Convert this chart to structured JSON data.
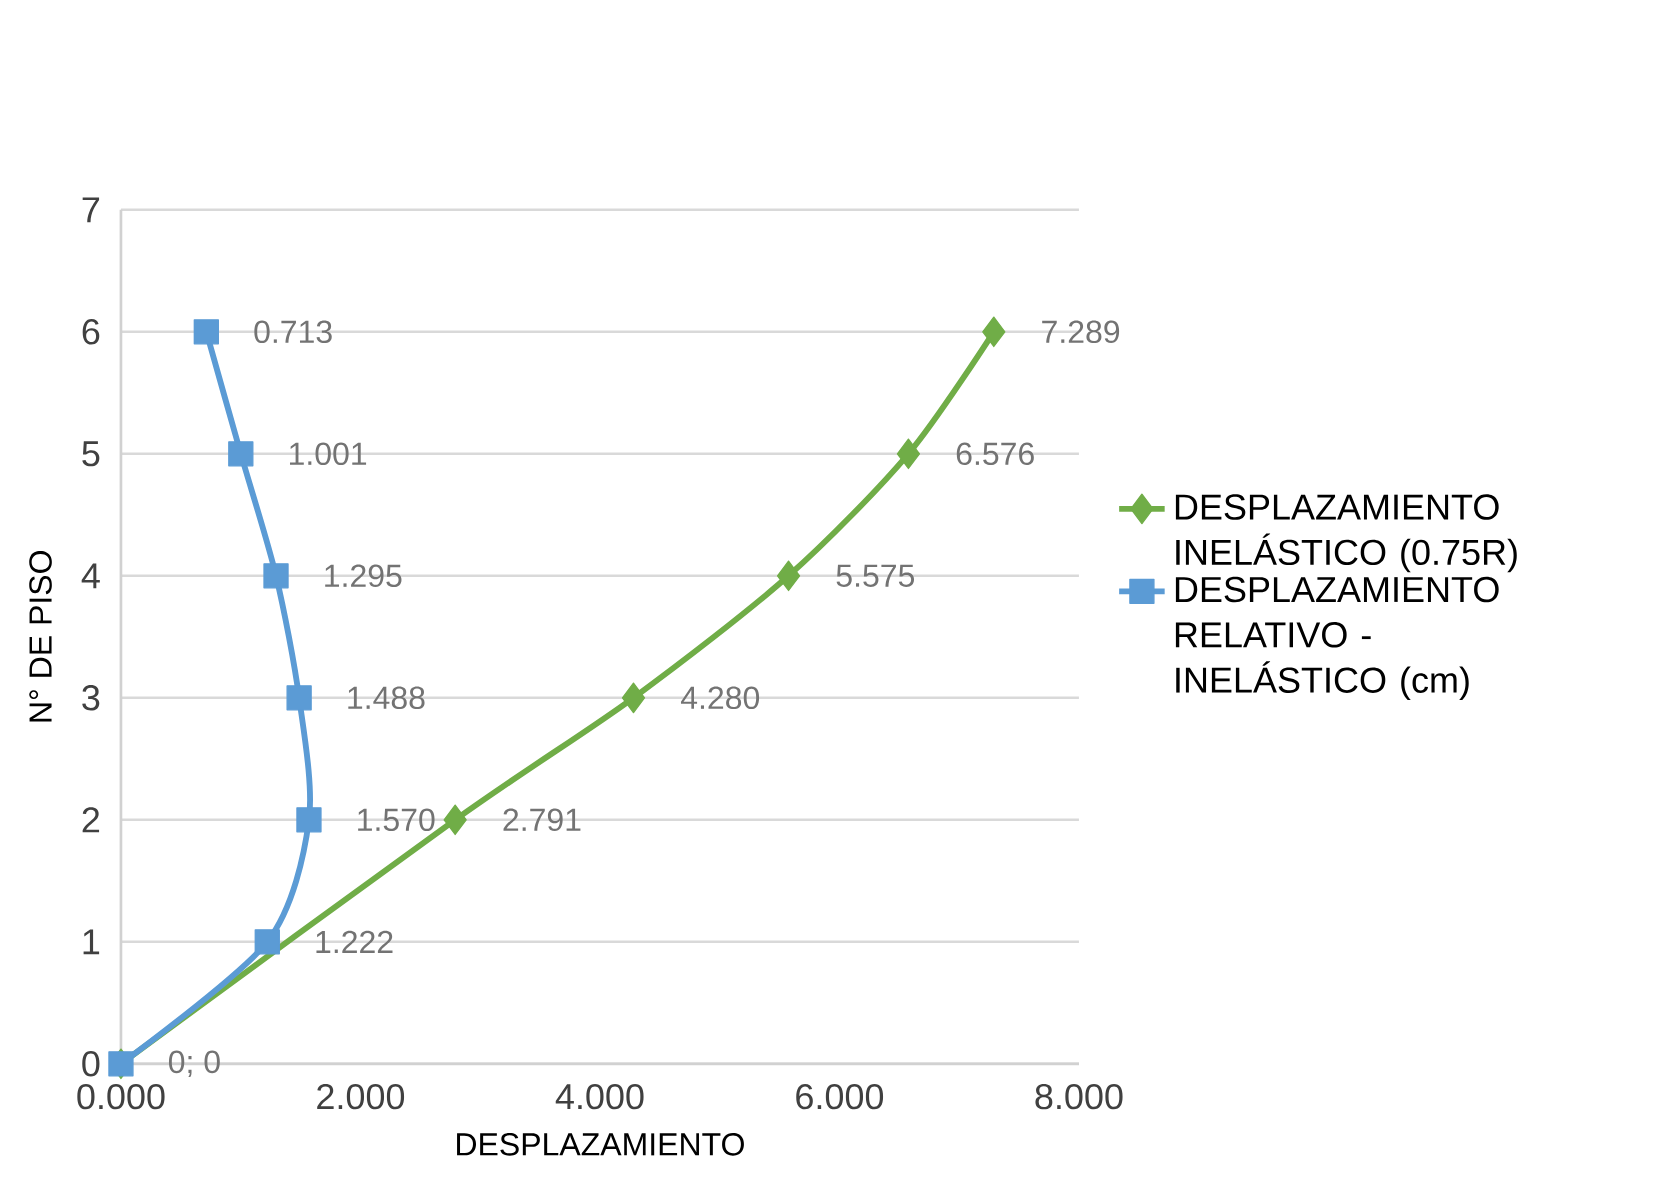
{
  "chart_data": {
    "type": "line",
    "orientation": "horizontal",
    "xlabel": "DESPLAZAMIENTO",
    "ylabel": "N° DE PISO",
    "xlim": [
      0,
      8
    ],
    "ylim": [
      0,
      7
    ],
    "xticks": [
      {
        "value": 0,
        "label": "0.000"
      },
      {
        "value": 2,
        "label": "2.000"
      },
      {
        "value": 4,
        "label": "4.000"
      },
      {
        "value": 6,
        "label": "6.000"
      },
      {
        "value": 8,
        "label": "8.000"
      }
    ],
    "yticks": [
      0,
      1,
      2,
      3,
      4,
      5,
      6,
      7
    ],
    "grid": "y",
    "legend": "right",
    "series": [
      {
        "name": "DESPLAZAMIENTO INELÁSTICO (0.75R)",
        "color": "#70ad47",
        "marker": "diamond",
        "x": [
          0,
          1,
          2,
          3,
          4,
          5,
          6
        ],
        "values": [
          0,
          null,
          2.791,
          4.28,
          5.575,
          6.576,
          7.289
        ],
        "value_labels": [
          null,
          null,
          "2.791",
          "4.280",
          "5.575",
          "6.576",
          "7.289"
        ]
      },
      {
        "name": "DESPLAZAMIENTO RELATIVO - INELÁSTICO (cm)",
        "color": "#5b9bd5",
        "marker": "square",
        "x": [
          0,
          1,
          2,
          3,
          4,
          5,
          6
        ],
        "values": [
          0,
          1.222,
          1.57,
          1.488,
          1.295,
          1.001,
          0.713
        ],
        "value_labels": [
          "0; 0",
          "1.222",
          "1.570",
          "1.488",
          "1.295",
          "1.001",
          "0.713"
        ]
      }
    ]
  }
}
